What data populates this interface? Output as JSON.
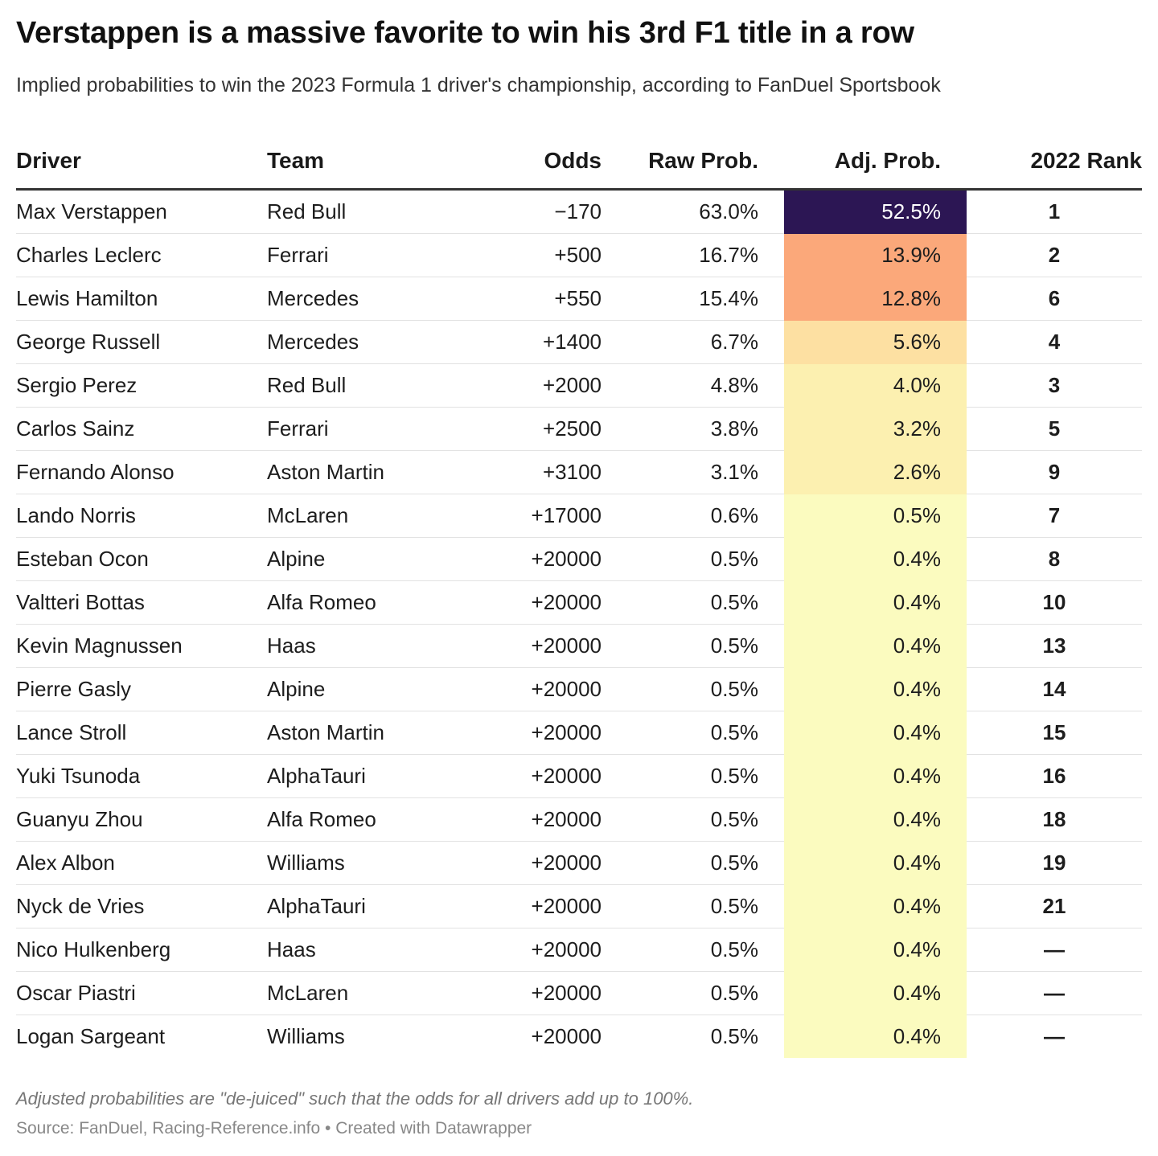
{
  "title": "Verstappen is a massive favorite to win his 3rd F1 title in a row",
  "subtitle": "Implied probabilities to win the 2023 Formula 1 driver's championship, according to FanDuel Sportsbook",
  "chart_data": {
    "type": "table",
    "columns": [
      "Driver",
      "Team",
      "Odds",
      "Raw Prob.",
      "Adj. Prob.",
      "2022 Rank"
    ],
    "rows": [
      {
        "driver": "Max Verstappen",
        "team": "Red Bull",
        "odds": "−170",
        "raw": "63.0%",
        "adj": "52.5%",
        "adj_value": 52.5,
        "rank": "1"
      },
      {
        "driver": "Charles Leclerc",
        "team": "Ferrari",
        "odds": "+500",
        "raw": "16.7%",
        "adj": "13.9%",
        "adj_value": 13.9,
        "rank": "2"
      },
      {
        "driver": "Lewis Hamilton",
        "team": "Mercedes",
        "odds": "+550",
        "raw": "15.4%",
        "adj": "12.8%",
        "adj_value": 12.8,
        "rank": "6"
      },
      {
        "driver": "George Russell",
        "team": "Mercedes",
        "odds": "+1400",
        "raw": "6.7%",
        "adj": "5.6%",
        "adj_value": 5.6,
        "rank": "4"
      },
      {
        "driver": "Sergio Perez",
        "team": "Red Bull",
        "odds": "+2000",
        "raw": "4.8%",
        "adj": "4.0%",
        "adj_value": 4.0,
        "rank": "3"
      },
      {
        "driver": "Carlos Sainz",
        "team": "Ferrari",
        "odds": "+2500",
        "raw": "3.8%",
        "adj": "3.2%",
        "adj_value": 3.2,
        "rank": "5"
      },
      {
        "driver": "Fernando Alonso",
        "team": "Aston Martin",
        "odds": "+3100",
        "raw": "3.1%",
        "adj": "2.6%",
        "adj_value": 2.6,
        "rank": "9"
      },
      {
        "driver": "Lando Norris",
        "team": "McLaren",
        "odds": "+17000",
        "raw": "0.6%",
        "adj": "0.5%",
        "adj_value": 0.5,
        "rank": "7"
      },
      {
        "driver": "Esteban Ocon",
        "team": "Alpine",
        "odds": "+20000",
        "raw": "0.5%",
        "adj": "0.4%",
        "adj_value": 0.4,
        "rank": "8"
      },
      {
        "driver": "Valtteri Bottas",
        "team": "Alfa Romeo",
        "odds": "+20000",
        "raw": "0.5%",
        "adj": "0.4%",
        "adj_value": 0.4,
        "rank": "10"
      },
      {
        "driver": "Kevin Magnussen",
        "team": "Haas",
        "odds": "+20000",
        "raw": "0.5%",
        "adj": "0.4%",
        "adj_value": 0.4,
        "rank": "13"
      },
      {
        "driver": "Pierre Gasly",
        "team": "Alpine",
        "odds": "+20000",
        "raw": "0.5%",
        "adj": "0.4%",
        "adj_value": 0.4,
        "rank": "14"
      },
      {
        "driver": "Lance Stroll",
        "team": "Aston Martin",
        "odds": "+20000",
        "raw": "0.5%",
        "adj": "0.4%",
        "adj_value": 0.4,
        "rank": "15"
      },
      {
        "driver": "Yuki Tsunoda",
        "team": "AlphaTauri",
        "odds": "+20000",
        "raw": "0.5%",
        "adj": "0.4%",
        "adj_value": 0.4,
        "rank": "16"
      },
      {
        "driver": "Guanyu Zhou",
        "team": "Alfa Romeo",
        "odds": "+20000",
        "raw": "0.5%",
        "adj": "0.4%",
        "adj_value": 0.4,
        "rank": "18"
      },
      {
        "driver": "Alex Albon",
        "team": "Williams",
        "odds": "+20000",
        "raw": "0.5%",
        "adj": "0.4%",
        "adj_value": 0.4,
        "rank": "19"
      },
      {
        "driver": "Nyck de Vries",
        "team": "AlphaTauri",
        "odds": "+20000",
        "raw": "0.5%",
        "adj": "0.4%",
        "adj_value": 0.4,
        "rank": "21"
      },
      {
        "driver": "Nico Hulkenberg",
        "team": "Haas",
        "odds": "+20000",
        "raw": "0.5%",
        "adj": "0.4%",
        "adj_value": 0.4,
        "rank": "—"
      },
      {
        "driver": "Oscar Piastri",
        "team": "McLaren",
        "odds": "+20000",
        "raw": "0.5%",
        "adj": "0.4%",
        "adj_value": 0.4,
        "rank": "—"
      },
      {
        "driver": "Logan Sargeant",
        "team": "Williams",
        "odds": "+20000",
        "raw": "0.5%",
        "adj": "0.4%",
        "adj_value": 0.4,
        "rank": "—"
      }
    ],
    "heatmap_colors": {
      "highest": "#2c1654",
      "high": "#fba87a",
      "mid": "#fde0a2",
      "low": "#fcf0b0",
      "lowest": "#fbfbbf"
    }
  },
  "footnote": "Adjusted probabilities are \"de-juiced\" such that the odds for all drivers add up to 100%.",
  "source": "Source: FanDuel, Racing-Reference.info • Created with Datawrapper"
}
